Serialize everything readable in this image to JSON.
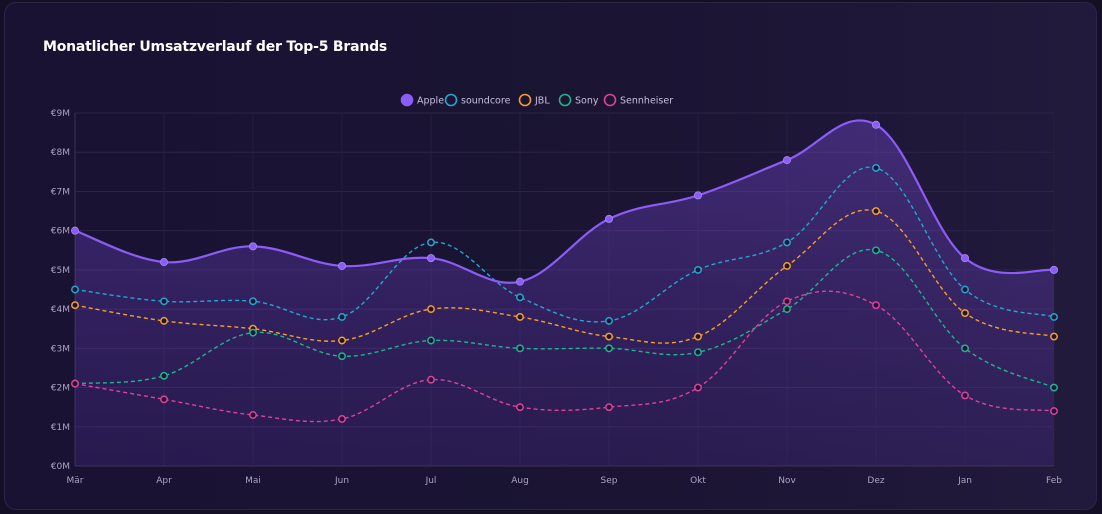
{
  "chart_data": {
    "type": "line",
    "title": "Monatlicher Umsatzverlauf der Top-5 Brands",
    "xlabel": "",
    "ylabel": "",
    "categories": [
      "Mär",
      "Apr",
      "Mai",
      "Jun",
      "Jul",
      "Aug",
      "Sep",
      "Okt",
      "Nov",
      "Dez",
      "Jan",
      "Feb"
    ],
    "ylim": [
      0,
      9
    ],
    "yticks": [
      "€0M",
      "€1M",
      "€2M",
      "€3M",
      "€4M",
      "€5M",
      "€6M",
      "€7M",
      "€8M",
      "€9M"
    ],
    "legend_position": "top-center",
    "grid": true,
    "series": [
      {
        "name": "Apple",
        "color": "#8b5cf6",
        "style": "solid",
        "values": [
          6.0,
          5.2,
          5.6,
          5.1,
          5.3,
          4.7,
          6.3,
          6.9,
          7.8,
          8.7,
          5.3,
          5.0
        ]
      },
      {
        "name": "soundcore",
        "color": "#22a7d0",
        "style": "dashed",
        "values": [
          4.5,
          4.2,
          4.2,
          3.8,
          5.7,
          4.3,
          3.7,
          5.0,
          5.7,
          7.6,
          4.5,
          3.8
        ]
      },
      {
        "name": "JBL",
        "color": "#f59e2b",
        "style": "dashed",
        "values": [
          4.1,
          3.7,
          3.5,
          3.2,
          4.0,
          3.8,
          3.3,
          3.3,
          5.1,
          6.5,
          3.9,
          3.3
        ]
      },
      {
        "name": "Sony",
        "color": "#1fb48f",
        "style": "dashed",
        "values": [
          2.1,
          2.3,
          3.4,
          2.8,
          3.2,
          3.0,
          3.0,
          2.9,
          4.0,
          5.5,
          3.0,
          2.0
        ]
      },
      {
        "name": "Sennheiser",
        "color": "#e0409a",
        "style": "dashed",
        "values": [
          2.1,
          1.7,
          1.3,
          1.2,
          2.2,
          1.5,
          1.5,
          2.0,
          4.2,
          4.1,
          1.8,
          1.4
        ]
      }
    ]
  }
}
